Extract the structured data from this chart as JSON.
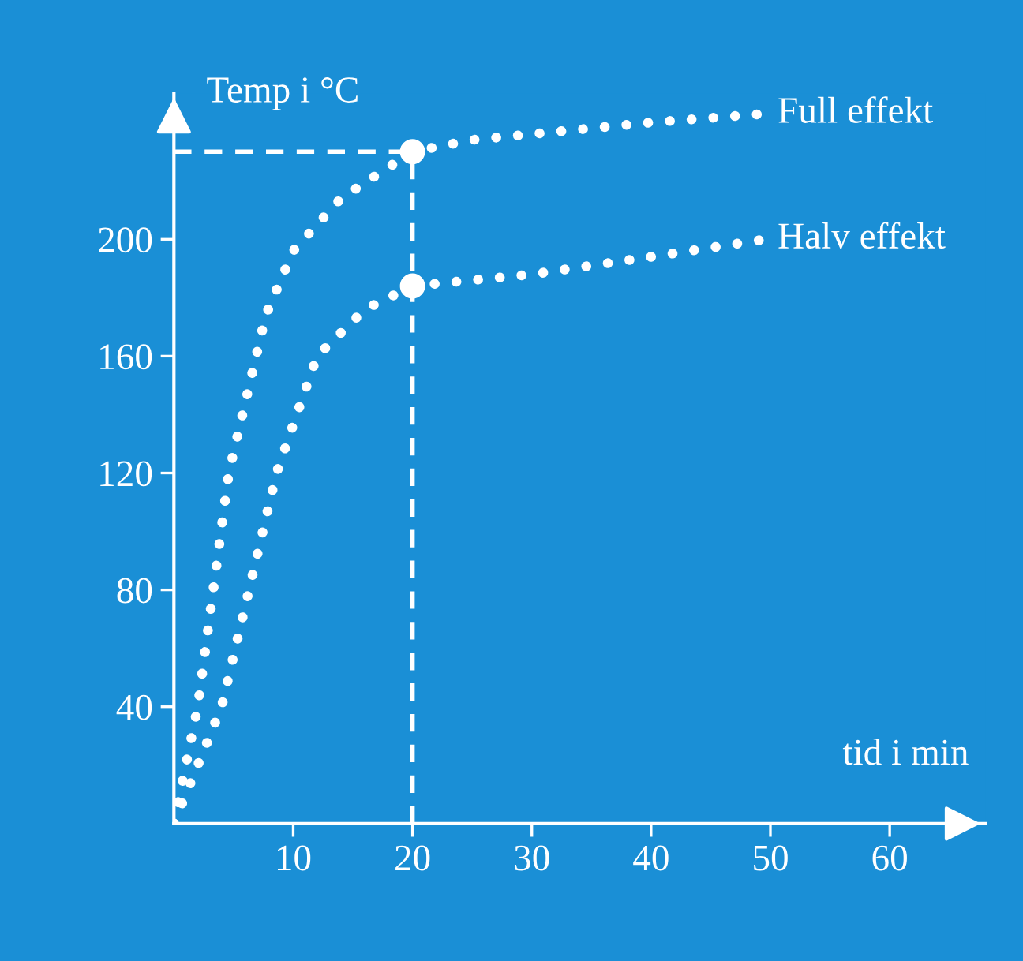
{
  "chart_data": {
    "type": "line",
    "xlabel": "tid i min",
    "ylabel": "Temp i °C",
    "xlim": [
      0,
      68
    ],
    "ylim": [
      0,
      250
    ],
    "xticks": [
      10,
      20,
      30,
      40,
      50,
      60
    ],
    "yticks": [
      40,
      80,
      120,
      160,
      200
    ],
    "line_style": "dotted",
    "marker": "none",
    "grid": false,
    "legend": false,
    "series": [
      {
        "name": "Full effekt",
        "color": "#ffffff",
        "x": [
          0,
          2,
          4.6,
          7.7,
          10,
          14,
          20,
          25,
          30,
          40,
          49.6
        ],
        "values": [
          0,
          40,
          120,
          174,
          196,
          214,
          230,
          234,
          236,
          240,
          243
        ]
      },
      {
        "name": "Halv effekt",
        "color": "#ffffff",
        "x": [
          0,
          4,
          8.6,
          12,
          16,
          20,
          25,
          30,
          40,
          49.6
        ],
        "values": [
          0,
          40,
          120,
          160,
          176,
          184,
          186,
          188,
          194,
          200
        ]
      },
      {
        "type": "scatter",
        "color": "#ffffff",
        "marker": "circle",
        "x": [
          20,
          20
        ],
        "values": [
          230,
          184
        ]
      }
    ],
    "ref_lines": [
      {
        "axis": "x",
        "value": 20,
        "color": "#ffffff",
        "line_style": "dashed"
      },
      {
        "axis": "y",
        "value": 230,
        "color": "#ffffff",
        "line_style": "dashed"
      }
    ]
  }
}
